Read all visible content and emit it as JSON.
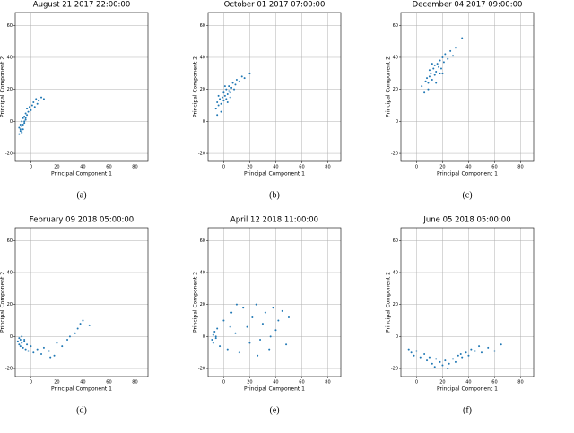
{
  "chart_data": [
    {
      "type": "scatter",
      "title": "August 21 2017 22:00:00",
      "caption": "(a)",
      "x_label": "Principal Component 1",
      "y_label": "Principal Component 2",
      "color": "#1f77b4",
      "grid": true,
      "xlim": [
        -12,
        90
      ],
      "ylim": [
        -25,
        68
      ],
      "xticks": [
        0,
        20,
        40,
        60,
        80
      ],
      "yticks": [
        -20,
        0,
        20,
        40,
        60
      ],
      "x": [
        -9,
        -8,
        -8,
        -7,
        -7,
        -6,
        -6,
        -5,
        -5,
        -4,
        -4,
        -3,
        -3,
        -2,
        -1,
        0,
        1,
        2,
        3,
        4,
        5,
        6,
        8,
        10,
        -9,
        -7,
        -6,
        -5,
        -4,
        -8
      ],
      "y": [
        -4,
        -2,
        -6,
        -3,
        0,
        -5,
        2,
        -1,
        3,
        1,
        5,
        4,
        8,
        6,
        9,
        7,
        10,
        12,
        9,
        14,
        11,
        13,
        15,
        14,
        -8,
        -7,
        -2,
        0,
        2,
        -5
      ]
    },
    {
      "type": "scatter",
      "title": "October 01 2017 07:00:00",
      "caption": "(b)",
      "x_label": "Principal Component 1",
      "y_label": "Principal Component 2",
      "color": "#1f77b4",
      "grid": true,
      "xlim": [
        -12,
        90
      ],
      "ylim": [
        -25,
        68
      ],
      "xticks": [
        0,
        20,
        40,
        60,
        80
      ],
      "yticks": [
        -20,
        0,
        20,
        40,
        60
      ],
      "x": [
        -6,
        -5,
        -4,
        -3,
        -2,
        -1,
        0,
        0,
        1,
        2,
        2,
        3,
        4,
        4,
        5,
        6,
        7,
        8,
        9,
        10,
        12,
        14,
        16,
        20,
        -4,
        -2,
        1,
        3,
        5,
        -5
      ],
      "y": [
        8,
        12,
        10,
        14,
        11,
        15,
        13,
        18,
        16,
        14,
        20,
        17,
        19,
        22,
        18,
        21,
        24,
        20,
        23,
        26,
        25,
        28,
        27,
        30,
        16,
        6,
        22,
        12,
        15,
        4
      ]
    },
    {
      "type": "scatter",
      "title": "December 04 2017 09:00:00",
      "caption": "(c)",
      "x_label": "Principal Component 1",
      "y_label": "Principal Component 2",
      "color": "#1f77b4",
      "grid": true,
      "xlim": [
        -12,
        90
      ],
      "ylim": [
        -25,
        68
      ],
      "xticks": [
        0,
        20,
        40,
        60,
        80
      ],
      "yticks": [
        -20,
        0,
        20,
        40,
        60
      ],
      "x": [
        4,
        6,
        7,
        8,
        9,
        10,
        10,
        11,
        12,
        13,
        14,
        14,
        15,
        16,
        17,
        18,
        18,
        19,
        20,
        21,
        22,
        24,
        26,
        28,
        30,
        35,
        12,
        15,
        9,
        20
      ],
      "y": [
        22,
        18,
        25,
        27,
        24,
        28,
        32,
        30,
        26,
        33,
        29,
        35,
        31,
        36,
        34,
        38,
        30,
        33,
        40,
        37,
        42,
        39,
        44,
        41,
        46,
        52,
        36,
        24,
        20,
        30
      ]
    },
    {
      "type": "scatter",
      "title": "February 09 2018 05:00:00",
      "caption": "(d)",
      "x_label": "Principal Component 1",
      "y_label": "Principal Component 2",
      "color": "#1f77b4",
      "grid": true,
      "xlim": [
        -12,
        90
      ],
      "ylim": [
        -25,
        68
      ],
      "xticks": [
        0,
        20,
        40,
        60,
        80
      ],
      "yticks": [
        -20,
        0,
        20,
        40,
        60
      ],
      "x": [
        -10,
        -9,
        -9,
        -8,
        -8,
        -7,
        -6,
        -5,
        -4,
        -3,
        -2,
        0,
        2,
        5,
        8,
        10,
        14,
        18,
        20,
        24,
        28,
        30,
        34,
        36,
        38,
        40,
        45,
        -7,
        -5,
        15
      ],
      "y": [
        -3,
        -5,
        -1,
        -6,
        -2,
        -4,
        -7,
        -3,
        -8,
        -5,
        -9,
        -6,
        -10,
        -8,
        -11,
        -7,
        -9,
        -12,
        -4,
        -6,
        -2,
        0,
        2,
        5,
        8,
        10,
        7,
        0,
        -2,
        -13
      ]
    },
    {
      "type": "scatter",
      "title": "April 12 2018 11:00:00",
      "caption": "(e)",
      "x_label": "Principal Component 1",
      "y_label": "Principal Component 2",
      "color": "#1f77b4",
      "grid": true,
      "xlim": [
        -12,
        90
      ],
      "ylim": [
        -25,
        68
      ],
      "xticks": [
        0,
        20,
        40,
        60,
        80
      ],
      "yticks": [
        -20,
        0,
        20,
        40,
        60
      ],
      "x": [
        -9,
        -8,
        -8,
        -7,
        -6,
        -5,
        -3,
        0,
        3,
        6,
        9,
        12,
        15,
        18,
        20,
        22,
        25,
        28,
        30,
        32,
        35,
        38,
        40,
        42,
        45,
        48,
        50,
        10,
        26,
        36,
        -6,
        5
      ],
      "y": [
        -2,
        1,
        -4,
        3,
        0,
        5,
        -6,
        10,
        -8,
        15,
        2,
        -10,
        18,
        6,
        -4,
        12,
        20,
        -2,
        8,
        15,
        -8,
        18,
        4,
        10,
        16,
        -5,
        12,
        20,
        -12,
        0,
        -1,
        6
      ]
    },
    {
      "type": "scatter",
      "title": "June 05 2018 05:00:00",
      "caption": "(f)",
      "x_label": "Principal Component 1",
      "y_label": "Principal Component 2",
      "color": "#1f77b4",
      "grid": true,
      "xlim": [
        -12,
        90
      ],
      "ylim": [
        -25,
        68
      ],
      "xticks": [
        0,
        20,
        40,
        60,
        80
      ],
      "yticks": [
        -20,
        0,
        20,
        40,
        60
      ],
      "x": [
        -6,
        -4,
        -2,
        0,
        3,
        6,
        8,
        10,
        12,
        15,
        18,
        20,
        22,
        25,
        28,
        30,
        32,
        35,
        38,
        40,
        42,
        45,
        48,
        50,
        55,
        60,
        65,
        14,
        24,
        34
      ],
      "y": [
        -8,
        -10,
        -12,
        -9,
        -13,
        -11,
        -15,
        -13,
        -17,
        -14,
        -16,
        -18,
        -15,
        -17,
        -14,
        -16,
        -12,
        -13,
        -10,
        -12,
        -8,
        -9,
        -6,
        -10,
        -7,
        -9,
        -5,
        -19,
        -20,
        -11
      ]
    }
  ]
}
